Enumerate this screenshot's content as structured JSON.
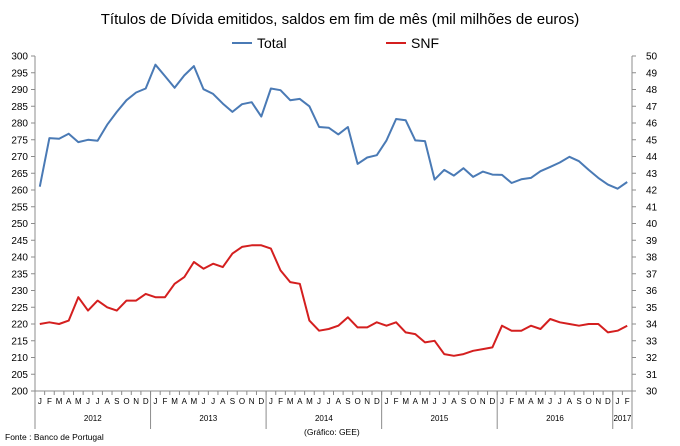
{
  "chart_data": {
    "type": "line",
    "title": "Títulos de Dívida emitidos, saldos em fim de mês  (mil milhões de euros)",
    "footnote_source": "Fonte : Banco de Portugal",
    "footnote_chart": "(Gráfico: GEE)",
    "y_left": {
      "min": 200,
      "max": 300,
      "step": 5
    },
    "y_right": {
      "min": 30,
      "max": 50,
      "step": 1
    },
    "month_letters": [
      "J",
      "F",
      "M",
      "A",
      "M",
      "J",
      "J",
      "A",
      "S",
      "O",
      "N",
      "D",
      "J",
      "F",
      "M",
      "A",
      "M",
      "J",
      "J",
      "A",
      "S",
      "O",
      "N",
      "D",
      "J",
      "F",
      "M",
      "A",
      "M",
      "J",
      "J",
      "A",
      "S",
      "O",
      "N",
      "D",
      "J",
      "F",
      "M",
      "A",
      "M",
      "J",
      "J",
      "A",
      "S",
      "O",
      "N",
      "D",
      "J",
      "F",
      "M",
      "A",
      "M",
      "J",
      "J",
      "A",
      "S",
      "O",
      "N",
      "D",
      "J",
      "F"
    ],
    "years": [
      {
        "label": "2012",
        "months": 12
      },
      {
        "label": "2013",
        "months": 12
      },
      {
        "label": "2014",
        "months": 12
      },
      {
        "label": "2015",
        "months": 12
      },
      {
        "label": "2016",
        "months": 12
      },
      {
        "label": "2017",
        "months": 2
      }
    ],
    "series": [
      {
        "name": "Total",
        "axis": "left",
        "color": "#4a7ab5",
        "values": [
          261,
          275.5,
          275.3,
          276.8,
          274.3,
          275,
          274.7,
          279.5,
          283.3,
          286.8,
          289.1,
          290.3,
          297.4,
          294,
          290.5,
          294.2,
          297,
          290.1,
          288.7,
          285.8,
          283.3,
          285.6,
          286.2,
          281.9,
          290.3,
          289.8,
          286.8,
          287.2,
          285,
          278.8,
          278.6,
          276.6,
          278.8,
          267.8,
          269.7,
          270.4,
          274.8,
          281.2,
          280.8,
          274.8,
          274.6,
          263.1,
          266,
          264.3,
          266.5,
          263.9,
          265.5,
          264.6,
          264.5,
          262.1,
          263.2,
          263.6,
          265.6,
          266.9,
          268.2,
          269.9,
          268.6,
          266,
          263.6,
          261.6,
          260.4,
          262.4
        ]
      },
      {
        "name": "SNF",
        "axis": "right",
        "color": "#d41f1f",
        "values": [
          34,
          34.1,
          34,
          34.2,
          35.6,
          34.8,
          35.4,
          35,
          34.8,
          35.4,
          35.4,
          35.8,
          35.6,
          35.6,
          36.4,
          36.8,
          37.7,
          37.3,
          37.6,
          37.4,
          38.2,
          38.6,
          38.7,
          38.7,
          38.5,
          37.2,
          36.5,
          36.4,
          34.2,
          33.6,
          33.7,
          33.9,
          34.4,
          33.8,
          33.8,
          34.1,
          33.9,
          34.1,
          33.5,
          33.4,
          32.9,
          33,
          32.2,
          32.1,
          32.2,
          32.4,
          32.5,
          32.6,
          33.9,
          33.6,
          33.6,
          33.9,
          33.7,
          34.3,
          34.1,
          34,
          33.9,
          34,
          34,
          33.5,
          33.6,
          33.9
        ]
      }
    ]
  }
}
